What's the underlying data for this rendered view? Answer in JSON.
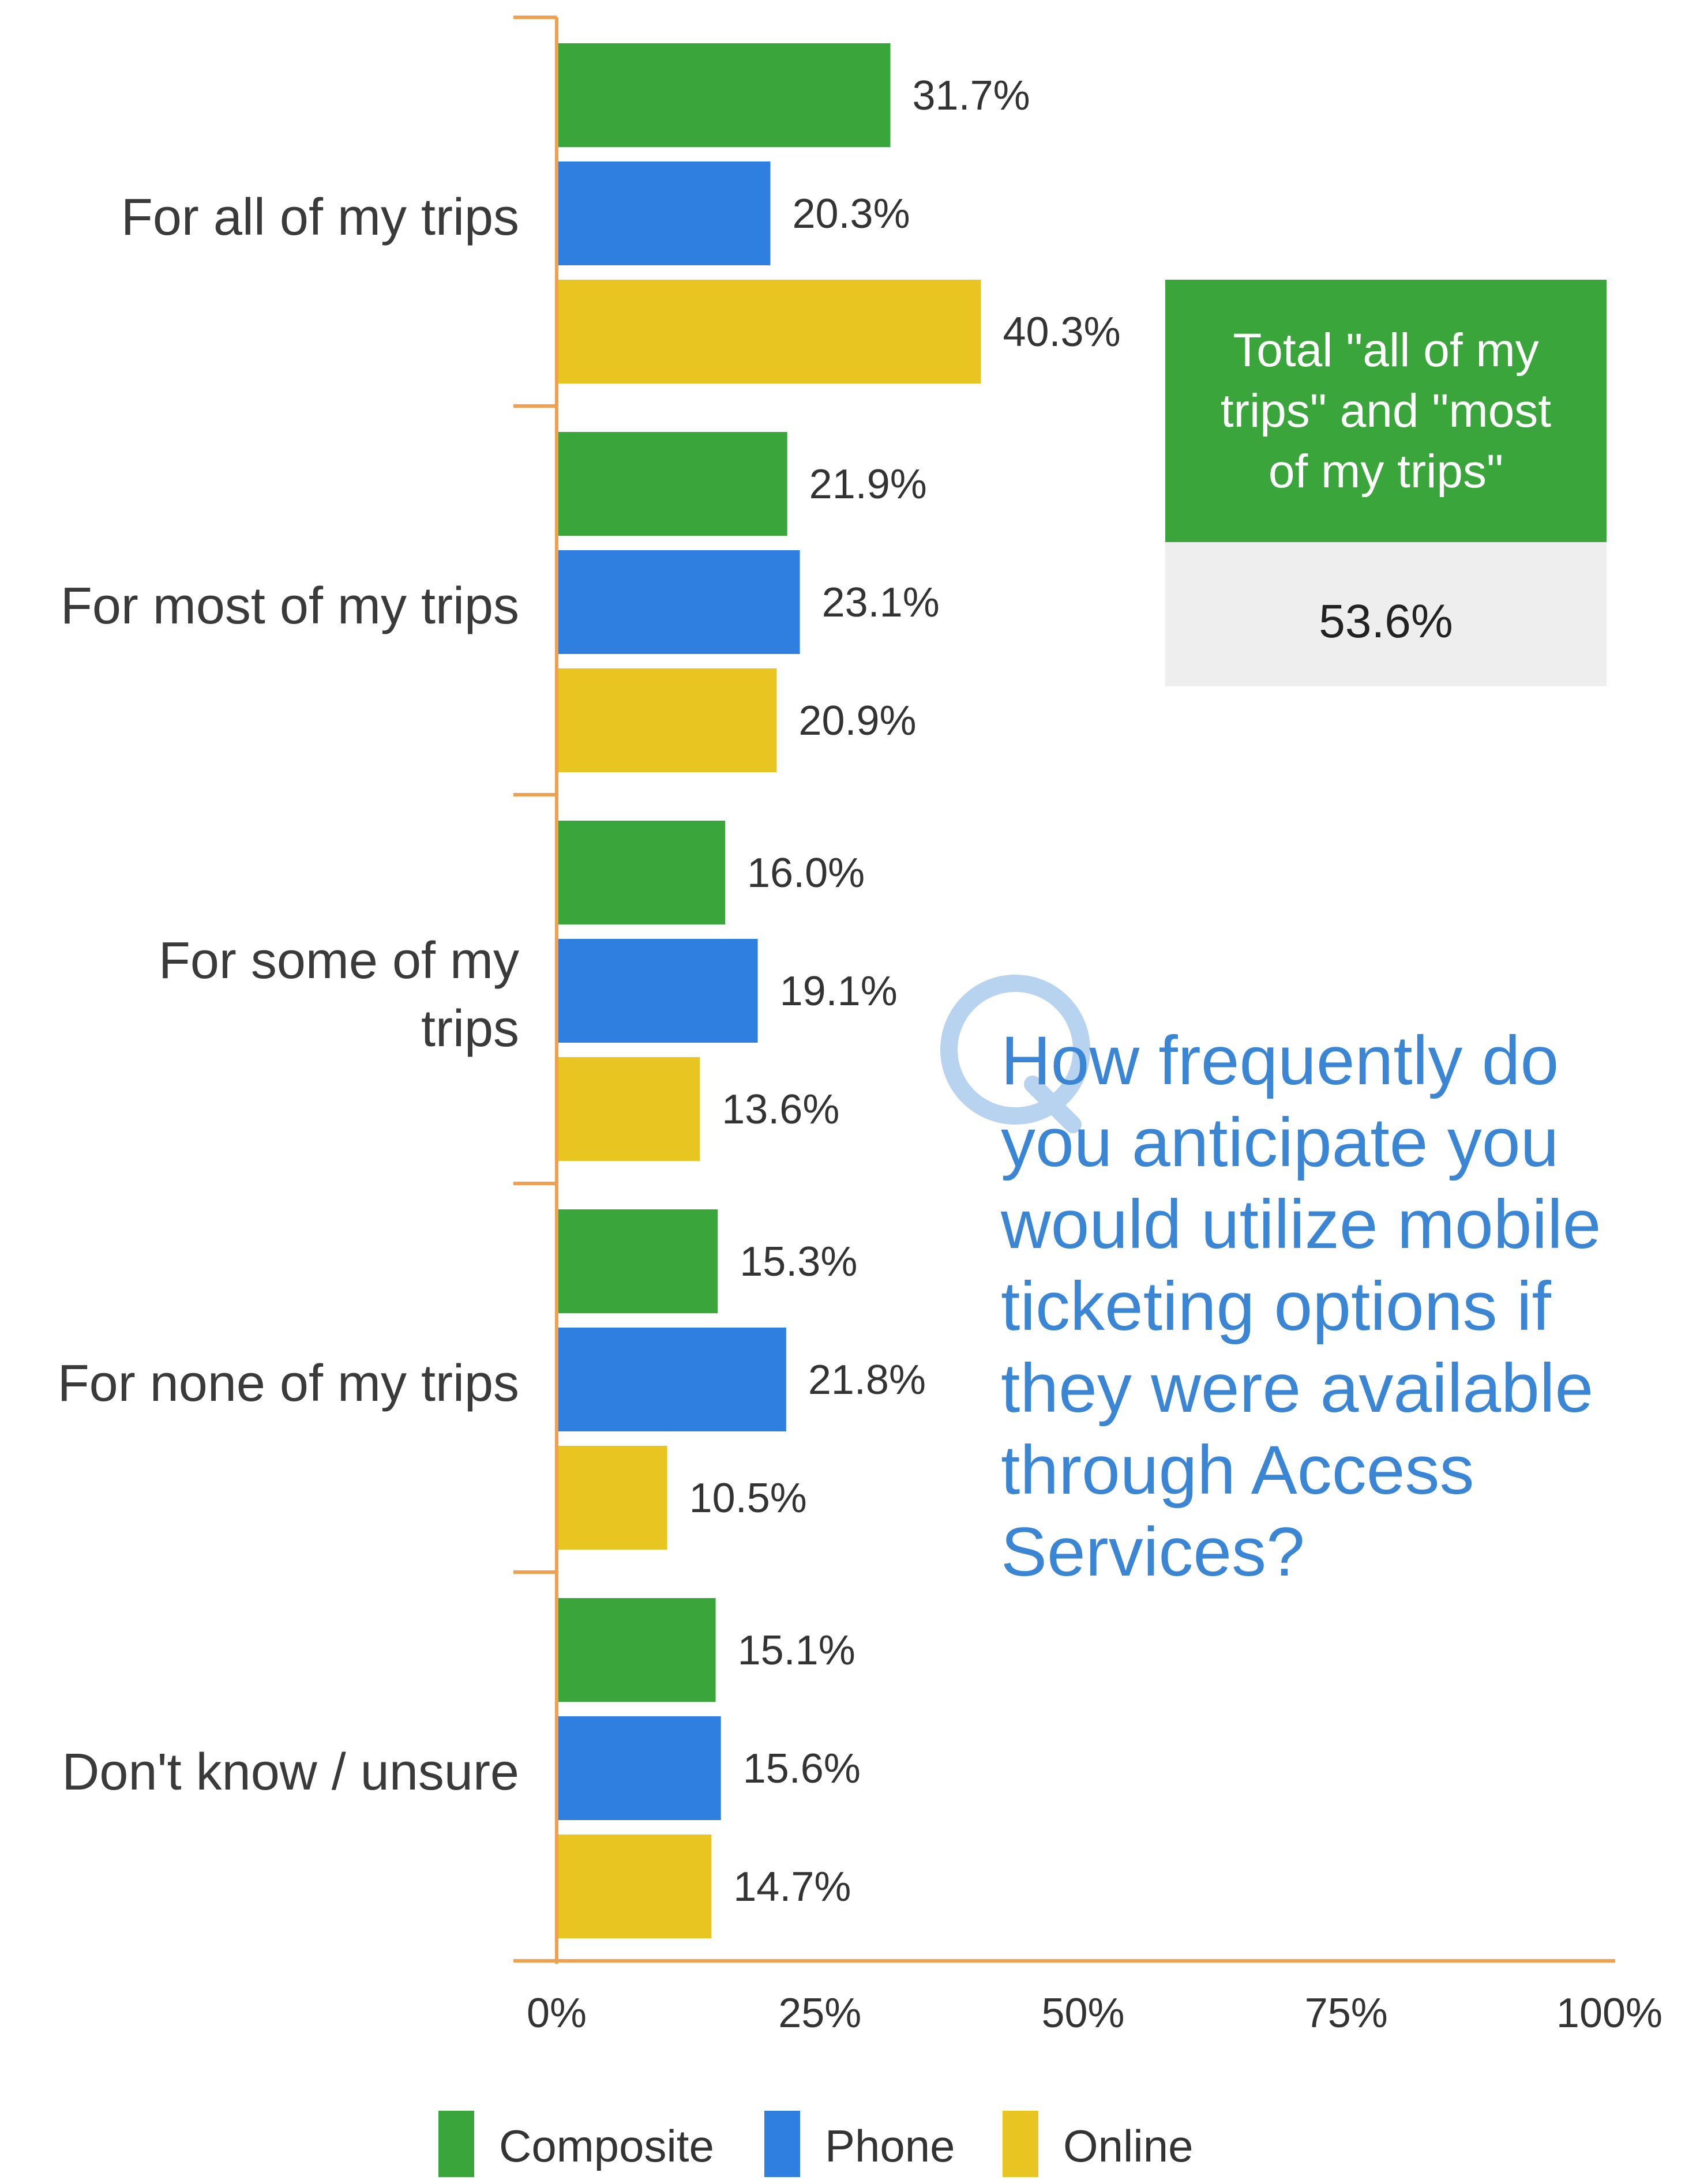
{
  "chart_data": {
    "type": "bar",
    "orientation": "horizontal",
    "categories": [
      [
        "For all of my trips"
      ],
      [
        "For most of my trips"
      ],
      [
        "For some of my",
        "trips"
      ],
      [
        "For none of my trips"
      ],
      [
        "Don't know / unsure"
      ]
    ],
    "series": [
      {
        "name": "Composite",
        "color": "#3aa53a",
        "values": [
          31.7,
          21.9,
          16.0,
          15.3,
          15.1
        ],
        "labels": [
          "31.7%",
          "21.9%",
          "16.0%",
          "15.3%",
          "15.1%"
        ]
      },
      {
        "name": "Phone",
        "color": "#2f7fe0",
        "values": [
          20.3,
          23.1,
          19.1,
          21.8,
          15.6
        ],
        "labels": [
          "20.3%",
          "23.1%",
          "19.1%",
          "21.8%",
          "15.6%"
        ]
      },
      {
        "name": "Online",
        "color": "#e8c520",
        "values": [
          40.3,
          20.9,
          13.6,
          10.5,
          14.7
        ],
        "labels": [
          "40.3%",
          "20.9%",
          "13.6%",
          "10.5%",
          "14.7%"
        ]
      }
    ],
    "xlim": [
      0,
      100
    ],
    "xticks": [
      "0%",
      "25%",
      "50%",
      "75%",
      "100%"
    ],
    "axis_color": "#f0a050",
    "grid": false,
    "legend_position": "bottom"
  },
  "callout": {
    "title_lines": [
      "Total \"all of my",
      "trips\" and \"most",
      "of my trips\""
    ],
    "value": "53.6%",
    "header_color": "#3aa53a",
    "body_color": "#eeeeee"
  },
  "question": {
    "icon": "q-letter-icon",
    "lines": [
      "How frequently do",
      "you anticipate you",
      "would utilize mobile",
      "ticketing options if",
      "they were available",
      "through Access",
      "Services?"
    ],
    "color": "#3a86d4"
  }
}
